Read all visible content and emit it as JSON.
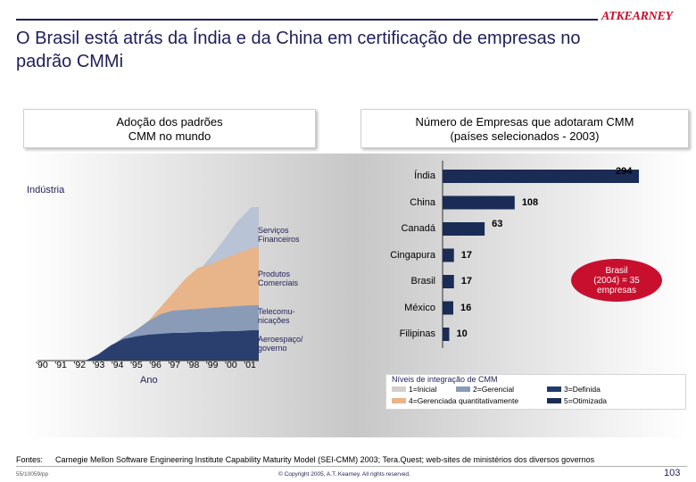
{
  "brand": {
    "logo": "ATKEARNEY"
  },
  "title": "O Brasil está atrás da Índia e da China em certificação de empresas no padrão CMMi",
  "left_header": {
    "line1": "Adoção dos padrões",
    "line2": "CMM no mundo"
  },
  "right_header": {
    "line1": "Número de Empresas que adotaram CMM",
    "line2": "(países selecionados - 2003)"
  },
  "left_chart": {
    "y_label": "Indústria",
    "x_label": "Ano",
    "x_ticks": [
      "'90",
      "'91",
      "'92",
      "'93",
      "'94",
      "'95",
      "'96",
      "'97",
      "'98",
      "'99",
      "'00",
      "'01"
    ],
    "area_labels": [
      {
        "l1": "Serviços",
        "l2": "Financeiros"
      },
      {
        "l1": "Produtos",
        "l2": "Comerciais"
      },
      {
        "l1": "Telecomu-",
        "l2": "nicações"
      },
      {
        "l1": "Aeroespaço/",
        "l2": "governo"
      }
    ]
  },
  "chart_data": {
    "type": "bar",
    "title": "Número de Empresas que adotaram CMM",
    "subtitle": "(países selecionados - 2003)",
    "categories": [
      "Índia",
      "China",
      "Canadá",
      "Cingapura",
      "Brasil",
      "México",
      "Filipinas"
    ],
    "values": [
      294,
      108,
      63,
      17,
      17,
      16,
      10
    ],
    "series": [
      {
        "name": "1=Inicial",
        "color": "#d0d0d0",
        "values": [
          0,
          0,
          0,
          0,
          0,
          0,
          0
        ]
      },
      {
        "name": "2=Gerencial",
        "color": "#8a9bb8",
        "values": [
          0,
          0,
          0,
          0,
          0,
          0,
          0
        ]
      },
      {
        "name": "3=Definida",
        "color": "#1f3a6b",
        "values": [
          0,
          0,
          0,
          0,
          0,
          0,
          0
        ]
      },
      {
        "name": "4=Gerenciada quantitativamente",
        "color": "#e8b48a",
        "values": [
          0,
          0,
          0,
          0,
          0,
          0,
          0
        ]
      },
      {
        "name": "5=Otimizada",
        "color": "#1a2c55",
        "values": [
          294,
          108,
          63,
          17,
          17,
          16,
          10
        ]
      }
    ],
    "xlim": [
      0,
      294
    ],
    "annotation": {
      "line1": "Brasil",
      "line2": "(2004) = 35",
      "line3": "empresas"
    }
  },
  "legend": {
    "title": "Níveis de integração de CMM",
    "items": [
      {
        "label": "1=Inicial",
        "color": "#d0d0d0"
      },
      {
        "label": "2=Gerencial",
        "color": "#8a9bb8"
      },
      {
        "label": "3=Definida",
        "color": "#1f3a6b"
      },
      {
        "label": "4=Gerenciada quantitativamente",
        "color": "#e8b48a"
      },
      {
        "label": "5=Otimizada",
        "color": "#1a2c55"
      }
    ]
  },
  "footer": {
    "sources_label": "Fontes:",
    "sources_text": "Carnegie Mellon Software Engineering Institute Capability Maturity Model (SEI-CMM) 2003; Tera.Quest; web-sites de ministérios dos diversos governos",
    "code": "55/10059/pp",
    "copyright": "© Copyright 2005, A.T. Kearney. All rights reserved.",
    "page": "103"
  },
  "colors": {
    "navy": "#1f1f5a",
    "red": "#c8102e",
    "bar": "#1a2c55",
    "area_fin": "#b9c3d6",
    "area_prod": "#e8b48a",
    "area_tel": "#8a9bb8",
    "area_aero": "#2a3f6e"
  }
}
